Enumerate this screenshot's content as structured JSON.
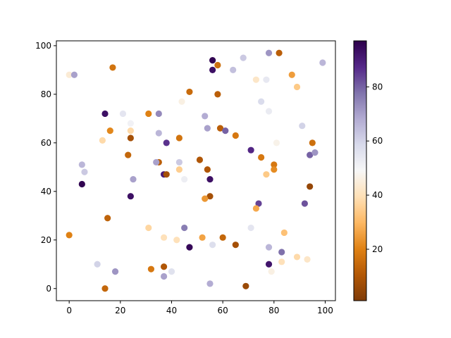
{
  "chart_data": {
    "type": "scatter",
    "title": "",
    "xlabel": "",
    "ylabel": "",
    "xlim": [
      -5,
      104
    ],
    "ylim": [
      -5,
      102
    ],
    "x_ticks": [
      0,
      20,
      40,
      60,
      80,
      100
    ],
    "y_ticks": [
      0,
      20,
      40,
      60,
      80,
      100
    ],
    "grid": false,
    "colormap": "PuOr",
    "colorbar": {
      "range": [
        1,
        97
      ],
      "ticks": [
        20,
        40,
        60,
        80
      ]
    },
    "points": [
      {
        "x": 0,
        "y": 88,
        "c": 44
      },
      {
        "x": 2,
        "y": 88,
        "c": 70
      },
      {
        "x": 17,
        "y": 91,
        "c": 17
      },
      {
        "x": 56,
        "y": 94,
        "c": 96
      },
      {
        "x": 56,
        "y": 90,
        "c": 93
      },
      {
        "x": 58,
        "y": 92,
        "c": 16
      },
      {
        "x": 64,
        "y": 90,
        "c": 64
      },
      {
        "x": 68,
        "y": 95,
        "c": 62
      },
      {
        "x": 78,
        "y": 97,
        "c": 72
      },
      {
        "x": 82,
        "y": 97,
        "c": 12
      },
      {
        "x": 87,
        "y": 88,
        "c": 25
      },
      {
        "x": 89,
        "y": 83,
        "c": 34
      },
      {
        "x": 99,
        "y": 93,
        "c": 66
      },
      {
        "x": 73,
        "y": 86,
        "c": 42
      },
      {
        "x": 77,
        "y": 86,
        "c": 54
      },
      {
        "x": 47,
        "y": 81,
        "c": 15
      },
      {
        "x": 58,
        "y": 80,
        "c": 12
      },
      {
        "x": 75,
        "y": 77,
        "c": 58
      },
      {
        "x": 44,
        "y": 77,
        "c": 46
      },
      {
        "x": 14,
        "y": 72,
        "c": 93
      },
      {
        "x": 21,
        "y": 72,
        "c": 55
      },
      {
        "x": 31,
        "y": 72,
        "c": 20
      },
      {
        "x": 35,
        "y": 72,
        "c": 74
      },
      {
        "x": 53,
        "y": 71,
        "c": 68
      },
      {
        "x": 78,
        "y": 73,
        "c": 53
      },
      {
        "x": 24,
        "y": 68,
        "c": 51
      },
      {
        "x": 54,
        "y": 66,
        "c": 70
      },
      {
        "x": 59,
        "y": 66,
        "c": 12
      },
      {
        "x": 61,
        "y": 65,
        "c": 80
      },
      {
        "x": 16,
        "y": 65,
        "c": 21
      },
      {
        "x": 24,
        "y": 65,
        "c": 38
      },
      {
        "x": 35,
        "y": 64,
        "c": 66
      },
      {
        "x": 65,
        "y": 63,
        "c": 18
      },
      {
        "x": 91,
        "y": 67,
        "c": 60
      },
      {
        "x": 24,
        "y": 62,
        "c": 8
      },
      {
        "x": 43,
        "y": 62,
        "c": 17
      },
      {
        "x": 13,
        "y": 61,
        "c": 38
      },
      {
        "x": 38,
        "y": 60,
        "c": 86
      },
      {
        "x": 81,
        "y": 60,
        "c": 47
      },
      {
        "x": 95,
        "y": 60,
        "c": 16
      },
      {
        "x": 71,
        "y": 57,
        "c": 88
      },
      {
        "x": 94,
        "y": 55,
        "c": 80
      },
      {
        "x": 96,
        "y": 56,
        "c": 72
      },
      {
        "x": 23,
        "y": 55,
        "c": 14
      },
      {
        "x": 75,
        "y": 54,
        "c": 18
      },
      {
        "x": 51,
        "y": 53,
        "c": 10
      },
      {
        "x": 35,
        "y": 52,
        "c": 12
      },
      {
        "x": 34,
        "y": 52,
        "c": 70
      },
      {
        "x": 43,
        "y": 52,
        "c": 62
      },
      {
        "x": 80,
        "y": 51,
        "c": 18
      },
      {
        "x": 5,
        "y": 51,
        "c": 66
      },
      {
        "x": 6,
        "y": 48,
        "c": 62
      },
      {
        "x": 43,
        "y": 49,
        "c": 35
      },
      {
        "x": 54,
        "y": 49,
        "c": 10
      },
      {
        "x": 80,
        "y": 49,
        "c": 22
      },
      {
        "x": 37,
        "y": 47,
        "c": 90
      },
      {
        "x": 38,
        "y": 47,
        "c": 8
      },
      {
        "x": 77,
        "y": 47,
        "c": 34
      },
      {
        "x": 25,
        "y": 45,
        "c": 70
      },
      {
        "x": 45,
        "y": 45,
        "c": 52
      },
      {
        "x": 55,
        "y": 45,
        "c": 93
      },
      {
        "x": 5,
        "y": 43,
        "c": 96
      },
      {
        "x": 94,
        "y": 42,
        "c": 5
      },
      {
        "x": 24,
        "y": 38,
        "c": 93
      },
      {
        "x": 55,
        "y": 38,
        "c": 8
      },
      {
        "x": 53,
        "y": 37,
        "c": 24
      },
      {
        "x": 74,
        "y": 35,
        "c": 84
      },
      {
        "x": 92,
        "y": 35,
        "c": 82
      },
      {
        "x": 73,
        "y": 33,
        "c": 27
      },
      {
        "x": 15,
        "y": 29,
        "c": 13
      },
      {
        "x": 0,
        "y": 22,
        "c": 20
      },
      {
        "x": 31,
        "y": 25,
        "c": 37
      },
      {
        "x": 45,
        "y": 25,
        "c": 76
      },
      {
        "x": 71,
        "y": 25,
        "c": 55
      },
      {
        "x": 84,
        "y": 23,
        "c": 32
      },
      {
        "x": 37,
        "y": 21,
        "c": 40
      },
      {
        "x": 42,
        "y": 20,
        "c": 40
      },
      {
        "x": 52,
        "y": 21,
        "c": 26
      },
      {
        "x": 60,
        "y": 21,
        "c": 14
      },
      {
        "x": 47,
        "y": 17,
        "c": 95
      },
      {
        "x": 56,
        "y": 18,
        "c": 57
      },
      {
        "x": 65,
        "y": 18,
        "c": 8
      },
      {
        "x": 78,
        "y": 17,
        "c": 66
      },
      {
        "x": 83,
        "y": 15,
        "c": 78
      },
      {
        "x": 89,
        "y": 13,
        "c": 38
      },
      {
        "x": 93,
        "y": 12,
        "c": 42
      },
      {
        "x": 11,
        "y": 10,
        "c": 60
      },
      {
        "x": 37,
        "y": 9,
        "c": 10
      },
      {
        "x": 32,
        "y": 8,
        "c": 18
      },
      {
        "x": 18,
        "y": 7,
        "c": 72
      },
      {
        "x": 40,
        "y": 7,
        "c": 56
      },
      {
        "x": 78,
        "y": 10,
        "c": 92
      },
      {
        "x": 83,
        "y": 11,
        "c": 40
      },
      {
        "x": 79,
        "y": 7,
        "c": 46
      },
      {
        "x": 37,
        "y": 5,
        "c": 70
      },
      {
        "x": 55,
        "y": 2,
        "c": 68
      },
      {
        "x": 14,
        "y": 0,
        "c": 14
      },
      {
        "x": 69,
        "y": 1,
        "c": 6
      }
    ]
  },
  "colors": {
    "colormap_stops": [
      "#7f3b08",
      "#b35806",
      "#e08214",
      "#fdb863",
      "#fee0b6",
      "#f7f7f7",
      "#d8daeb",
      "#b2abd2",
      "#8073ac",
      "#542788",
      "#2d004b"
    ],
    "axis": "#000000",
    "background": "#ffffff"
  }
}
